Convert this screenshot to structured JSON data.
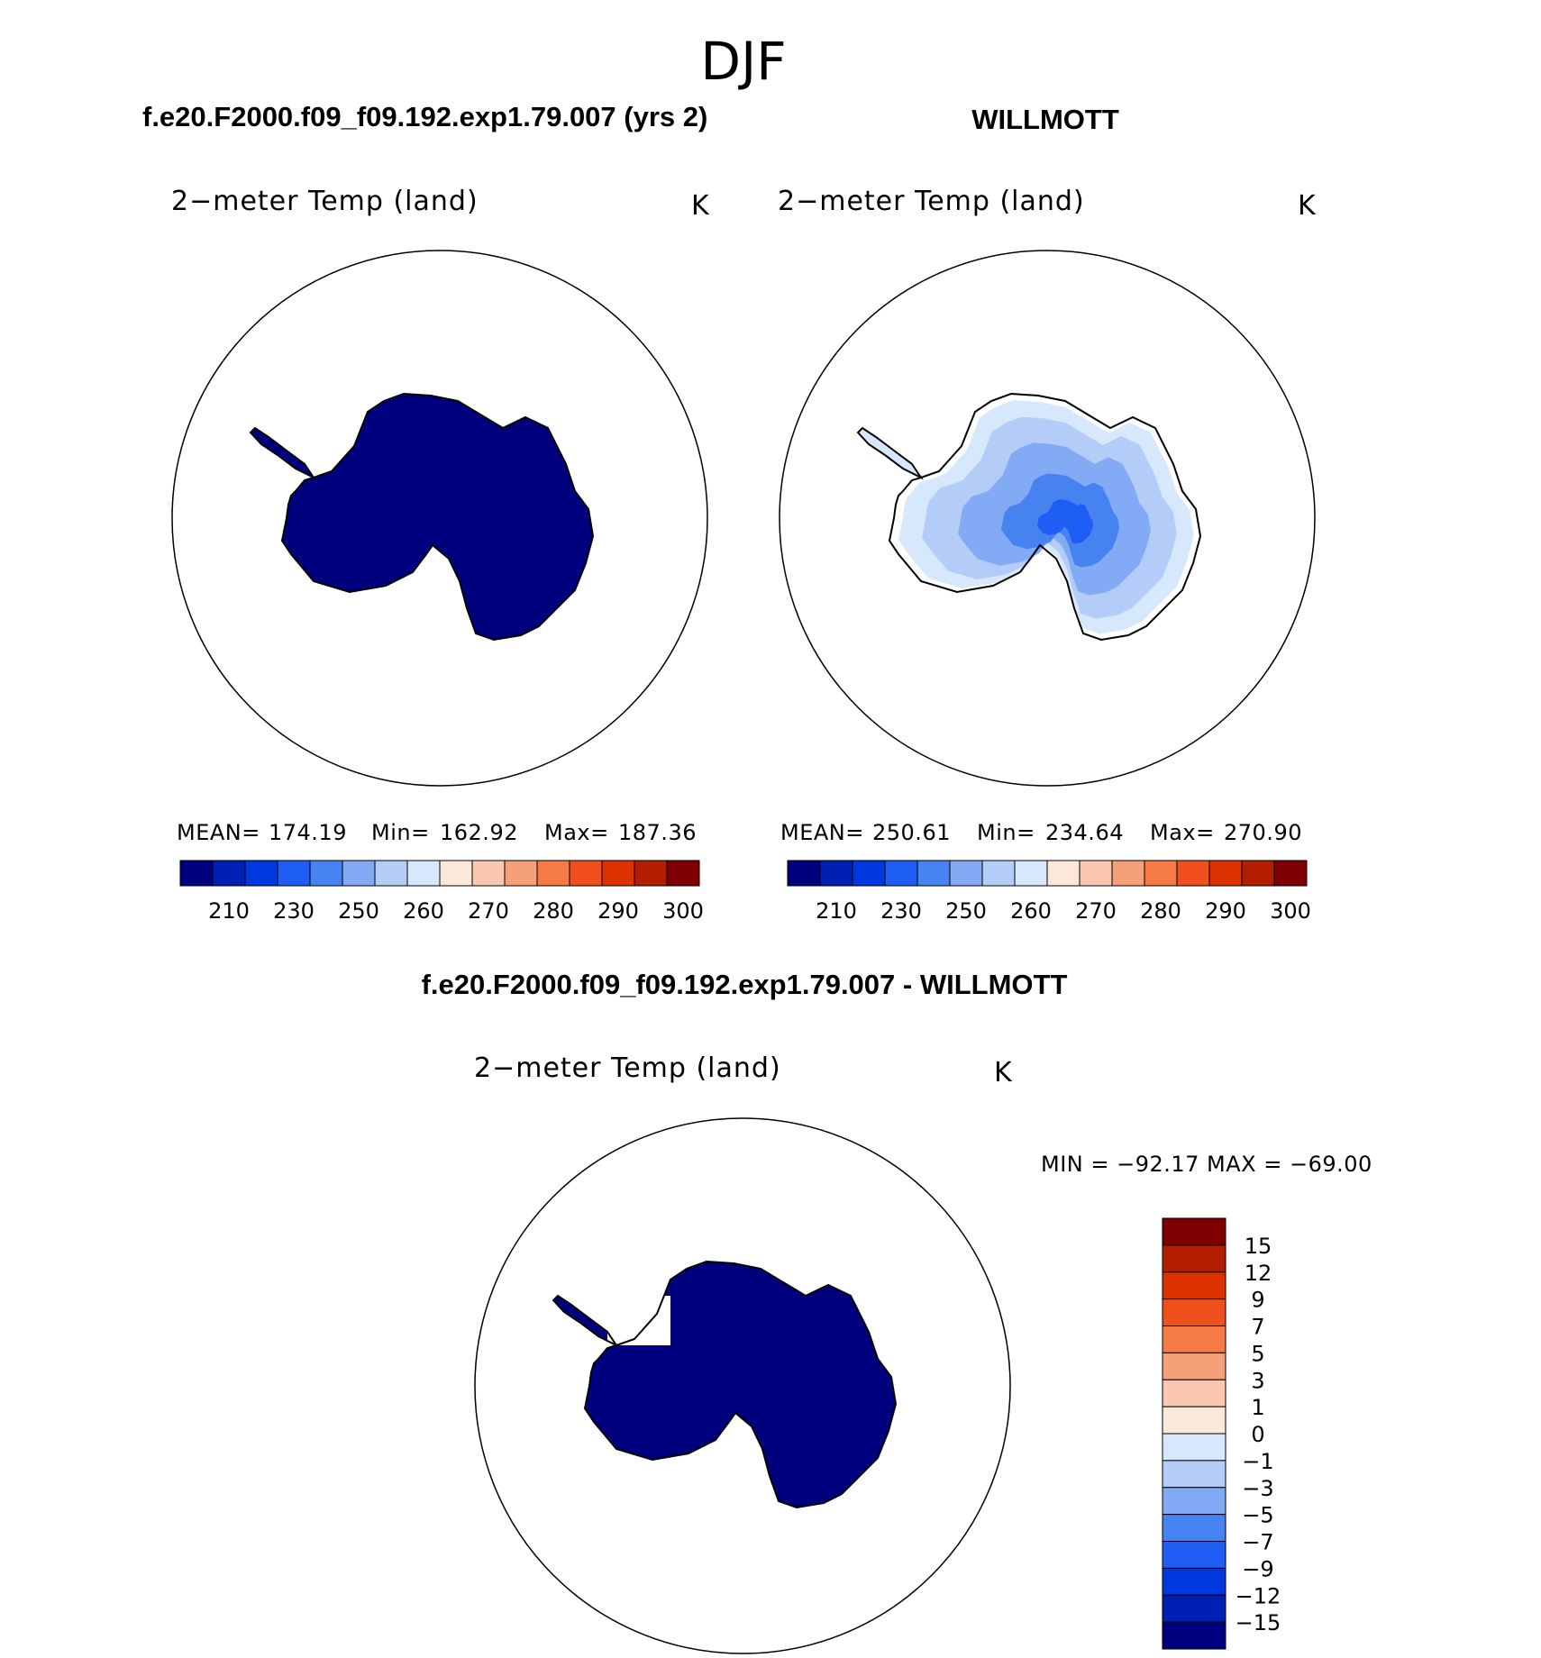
{
  "figure": {
    "season": "DJF",
    "panel_a_title": "f.e20.F2000.f09_f09.192.exp1.79.007 (yrs 2)",
    "panel_b_title": "WILLMOTT",
    "diff_title": "f.e20.F2000.f09_f09.192.exp1.79.007 - WILLMOTT"
  },
  "colors": {
    "abs_scale": [
      "#00007f",
      "#0020b4",
      "#0038e0",
      "#1e5ef5",
      "#4682f0",
      "#82aaf5",
      "#b4cdf8",
      "#d7e8fc",
      "#fce8d8",
      "#fac8b0",
      "#f5a078",
      "#f57a46",
      "#f0501e",
      "#dc3200",
      "#b41e00",
      "#7f0000"
    ],
    "diff_scale": [
      "#00007f",
      "#0020b4",
      "#0038e0",
      "#1e5ef5",
      "#4682f0",
      "#82aaf5",
      "#b4cdf8",
      "#d7e8fc",
      "#fce8d8",
      "#fac8b0",
      "#f5a078",
      "#f57a46",
      "#f0501e",
      "#dc3200",
      "#b41e00",
      "#7f0000"
    ],
    "coast": "#000000",
    "ocean": "#ffffff"
  },
  "chart_data": [
    {
      "type": "heatmap",
      "title": "f.e20.F2000.f09_f09.192.exp1.79.007 (yrs 2)",
      "variable": "2−meter Temp (land)",
      "units": "K",
      "projection": "south polar stereographic",
      "stats": {
        "mean_label": "MEAN=",
        "mean": "174.19",
        "min_label": "Min=",
        "min": "162.92",
        "max_label": "Max=",
        "max": "187.36"
      },
      "colorbar": {
        "levels": [
          210,
          220,
          230,
          240,
          250,
          255,
          260,
          265,
          270,
          275,
          280,
          285,
          290,
          295,
          300
        ],
        "tick_labels": [
          "210",
          "230",
          "250",
          "260",
          "270",
          "280",
          "290",
          "300"
        ]
      },
      "fill_level_index": 0
    },
    {
      "type": "heatmap",
      "title": "WILLMOTT",
      "variable": "2−meter Temp (land)",
      "units": "K",
      "projection": "south polar stereographic",
      "stats": {
        "mean_label": "MEAN=",
        "mean": "250.61",
        "min_label": "Min=",
        "min": "234.64",
        "max_label": "Max=",
        "max": "270.90"
      },
      "colorbar": {
        "levels": [
          210,
          220,
          230,
          240,
          250,
          255,
          260,
          265,
          270,
          275,
          280,
          285,
          290,
          295,
          300
        ],
        "tick_labels": [
          "210",
          "230",
          "250",
          "260",
          "270",
          "280",
          "290",
          "300"
        ]
      },
      "fill_level_index": 5
    },
    {
      "type": "heatmap",
      "title": "f.e20.F2000.f09_f09.192.exp1.79.007 - WILLMOTT",
      "variable": "2−meter Temp (land)",
      "units": "K",
      "projection": "south polar stereographic",
      "stats_text": "MIN = −92.17 MAX = −69.00",
      "colorbar": {
        "orientation": "vertical",
        "levels": [
          -15,
          -12,
          -9,
          -7,
          -5,
          -3,
          -1,
          0,
          1,
          3,
          5,
          7,
          9,
          12,
          15
        ],
        "tick_labels": [
          "15",
          "12",
          "9",
          "7",
          "5",
          "3",
          "1",
          "0",
          "−1",
          "−3",
          "−5",
          "−7",
          "−9",
          "−12",
          "−15"
        ]
      },
      "fill_level_index": 0
    }
  ]
}
